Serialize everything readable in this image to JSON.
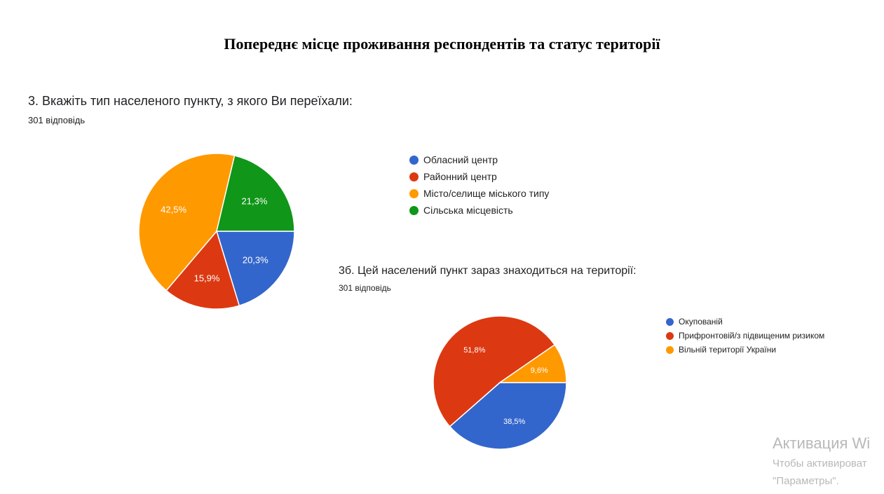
{
  "title": "Попереднє місце проживання респондентів та статус території",
  "chart_data": [
    {
      "type": "pie",
      "title": "3. Вкажіть тип населеного пункту, з якого Ви переїхали:",
      "subtitle": "301 відповідь",
      "categories": [
        "Обласний центр",
        "Районний центр",
        "Місто/селище міського типу",
        "Сільська місцевість"
      ],
      "values": [
        20.3,
        15.9,
        42.5,
        21.3
      ],
      "labels": [
        "20,3%",
        "15,9%",
        "42,5%",
        "21,3%"
      ],
      "colors": [
        "#3366cc",
        "#dc3912",
        "#ff9900",
        "#109618"
      ],
      "legend": "right"
    },
    {
      "type": "pie",
      "title": "3б. Цей населений пункт зараз знаходиться на території:",
      "subtitle": "301 відповідь",
      "categories": [
        "Окупованій",
        "Прифронтовій/з підвищеним ризиком",
        "Вільній території України"
      ],
      "values": [
        38.5,
        51.8,
        9.6
      ],
      "labels": [
        "38,5%",
        "51,8%",
        "9,6%"
      ],
      "colors": [
        "#3366cc",
        "#dc3912",
        "#ff9900"
      ],
      "legend": "right"
    }
  ],
  "watermark": {
    "line1": "Активация Wi",
    "line2": "Чтобы активироват",
    "line3": "\"Параметры\"."
  }
}
